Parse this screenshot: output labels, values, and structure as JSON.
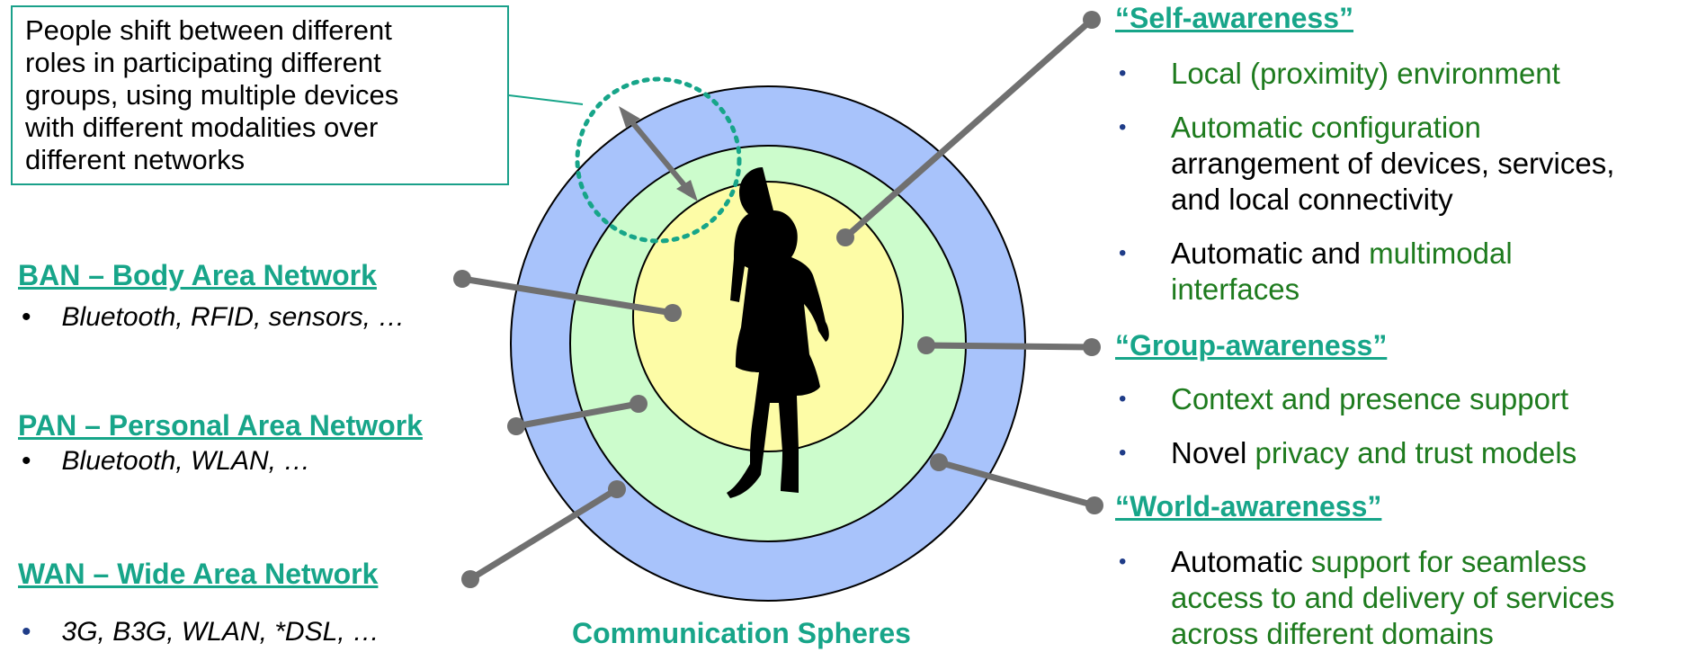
{
  "callout": {
    "lines": [
      "People shift between different",
      "roles in participating different",
      "groups, using multiple devices",
      "with different modalities over",
      "different networks"
    ]
  },
  "networks": [
    {
      "title": "BAN – Body Area Network",
      "items": [
        "Bluetooth, RFID, sensors, …"
      ]
    },
    {
      "title": "PAN – Personal Area Network",
      "items": [
        "Bluetooth, WLAN, …"
      ]
    },
    {
      "title": "WAN – Wide Area Network",
      "items": [
        "3G, B3G, WLAN, *DSL, …"
      ]
    }
  ],
  "caption": "Communication Spheres",
  "awareness": [
    {
      "title": "“Self-awareness”",
      "bullets": [
        {
          "lines": [
            [
              {
                "text": "Local (proximity) environment",
                "color": "#1e7b1e"
              }
            ]
          ]
        },
        {
          "lines": [
            [
              {
                "text": "Automatic configuration",
                "color": "#1e7b1e"
              }
            ],
            [
              {
                "text": "arrangement of devices, services,",
                "color": "#000000"
              }
            ],
            [
              {
                "text": "and local connectivity",
                "color": "#000000"
              }
            ]
          ]
        },
        {
          "lines": [
            [
              {
                "text": "Automatic and ",
                "color": "#000000"
              },
              {
                "text": "multimodal",
                "color": "#1e7b1e"
              }
            ],
            [
              {
                "text": "interfaces",
                "color": "#1e7b1e"
              }
            ]
          ]
        }
      ]
    },
    {
      "title": "“Group-awareness”",
      "bullets": [
        {
          "lines": [
            [
              {
                "text": "Context and presence support",
                "color": "#1e7b1e"
              }
            ]
          ]
        },
        {
          "lines": [
            [
              {
                "text": "Novel ",
                "color": "#000000"
              },
              {
                "text": "privacy and trust models",
                "color": "#1e7b1e"
              }
            ]
          ]
        }
      ]
    },
    {
      "title": "“World-awareness”",
      "bullets": [
        {
          "lines": [
            [
              {
                "text": "Automatic ",
                "color": "#000000"
              },
              {
                "text": "support for seamless",
                "color": "#1e7b1e"
              }
            ],
            [
              {
                "text": "access to and delivery of services",
                "color": "#1e7b1e"
              }
            ],
            [
              {
                "text": "across different domains",
                "color": "#1e7b1e"
              }
            ]
          ]
        }
      ]
    }
  ]
}
